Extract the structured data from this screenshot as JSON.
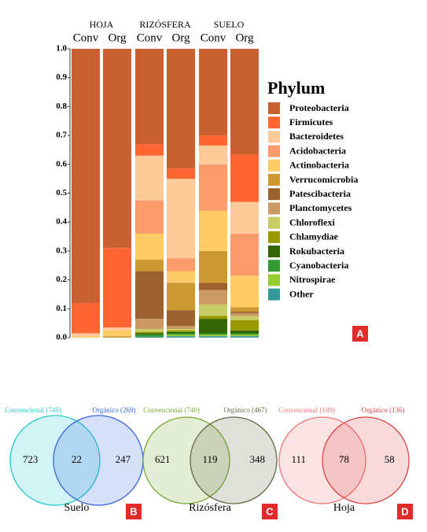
{
  "chart_data": [
    {
      "type": "stacked_bar",
      "legend_title": "Phylum",
      "panel": "A",
      "groups": [
        "HOJA",
        "RIZÓSFERA",
        "SUELO"
      ],
      "categories": [
        "Conv",
        "Org",
        "Conv",
        "Org",
        "Conv",
        "Org"
      ],
      "ylim": [
        0,
        1
      ],
      "yticks": [
        {
          "value": 0,
          "label": "0.0"
        },
        0.1,
        0.2,
        0.3,
        0.4,
        0.5,
        0.6,
        0.7,
        0.8,
        0.9,
        {
          "value": 1,
          "label": "1.0"
        }
      ],
      "series": [
        {
          "name": "Proteobacteria",
          "color": "#C8602F",
          "values": [
            0.88,
            0.69,
            0.33,
            0.415,
            0.3,
            0.365
          ]
        },
        {
          "name": "Firmicutes",
          "color": "#FF6633",
          "values": [
            0.105,
            0.275,
            0.04,
            0.035,
            0.035,
            0.165
          ]
        },
        {
          "name": "Bacteroidetes",
          "color": "#FDCB9A",
          "values": [
            0.01,
            0.01,
            0.155,
            0.275,
            0.065,
            0.11
          ]
        },
        {
          "name": "Acidobacteria",
          "color": "#FB9A6A",
          "values": [
            0,
            0,
            0.115,
            0.045,
            0.16,
            0.145
          ]
        },
        {
          "name": "Actinobacteria",
          "color": "#FDCB66",
          "values": [
            0.005,
            0.02,
            0.09,
            0.04,
            0.14,
            0.11
          ]
        },
        {
          "name": "Verrucomicrobia",
          "color": "#CC9933",
          "values": [
            0,
            0.005,
            0.04,
            0.095,
            0.11,
            0.015
          ]
        },
        {
          "name": "Patescibacteria",
          "color": "#9B6230",
          "values": [
            0,
            0,
            0.165,
            0.055,
            0.025,
            0.005
          ]
        },
        {
          "name": "Planctomycetes",
          "color": "#CB9966",
          "values": [
            0,
            0,
            0.035,
            0.01,
            0.05,
            0.01
          ]
        },
        {
          "name": "Chloroflexi",
          "color": "#C8CC66",
          "values": [
            0,
            0,
            0.01,
            0.005,
            0.04,
            0.015
          ]
        },
        {
          "name": "Chlamydiae",
          "color": "#999900",
          "values": [
            0,
            0,
            0.005,
            0.005,
            0.01,
            0.035
          ]
        },
        {
          "name": "Rokubacteria",
          "color": "#336600",
          "values": [
            0,
            0,
            0.005,
            0.005,
            0.05,
            0.01
          ]
        },
        {
          "name": "Cyanobacteria",
          "color": "#339933",
          "values": [
            0,
            0,
            0.007,
            0.005,
            0.005,
            0.005
          ]
        },
        {
          "name": "Nitrospirae",
          "color": "#99CC33",
          "values": [
            0,
            0,
            0,
            0.005,
            0.005,
            0.005
          ]
        },
        {
          "name": "Other",
          "color": "#339999",
          "values": [
            0,
            0,
            0.003,
            0.005,
            0.005,
            0.005
          ]
        }
      ]
    },
    {
      "type": "venn",
      "label": "Suelo",
      "panel": "B",
      "sets": [
        {
          "name": "Convencional (745)",
          "color": "#22C8CC"
        },
        {
          "name": "Orgánico (269)",
          "color": "#3366DD"
        }
      ],
      "values": [
        723,
        22,
        247
      ]
    },
    {
      "type": "venn",
      "label": "Rizósfera",
      "panel": "C",
      "sets": [
        {
          "name": "Convencional (740)",
          "color": "#77AA33"
        },
        {
          "name": "Orgánico (467)",
          "color": "#666644"
        }
      ],
      "values": [
        621,
        119,
        348
      ]
    },
    {
      "type": "venn",
      "label": "Hoja",
      "panel": "D",
      "sets": [
        {
          "name": "Convencional (189)",
          "color": "#EE7777"
        },
        {
          "name": "Orgánico (136)",
          "color": "#DD4444"
        }
      ],
      "values": [
        111,
        78,
        58
      ]
    }
  ]
}
